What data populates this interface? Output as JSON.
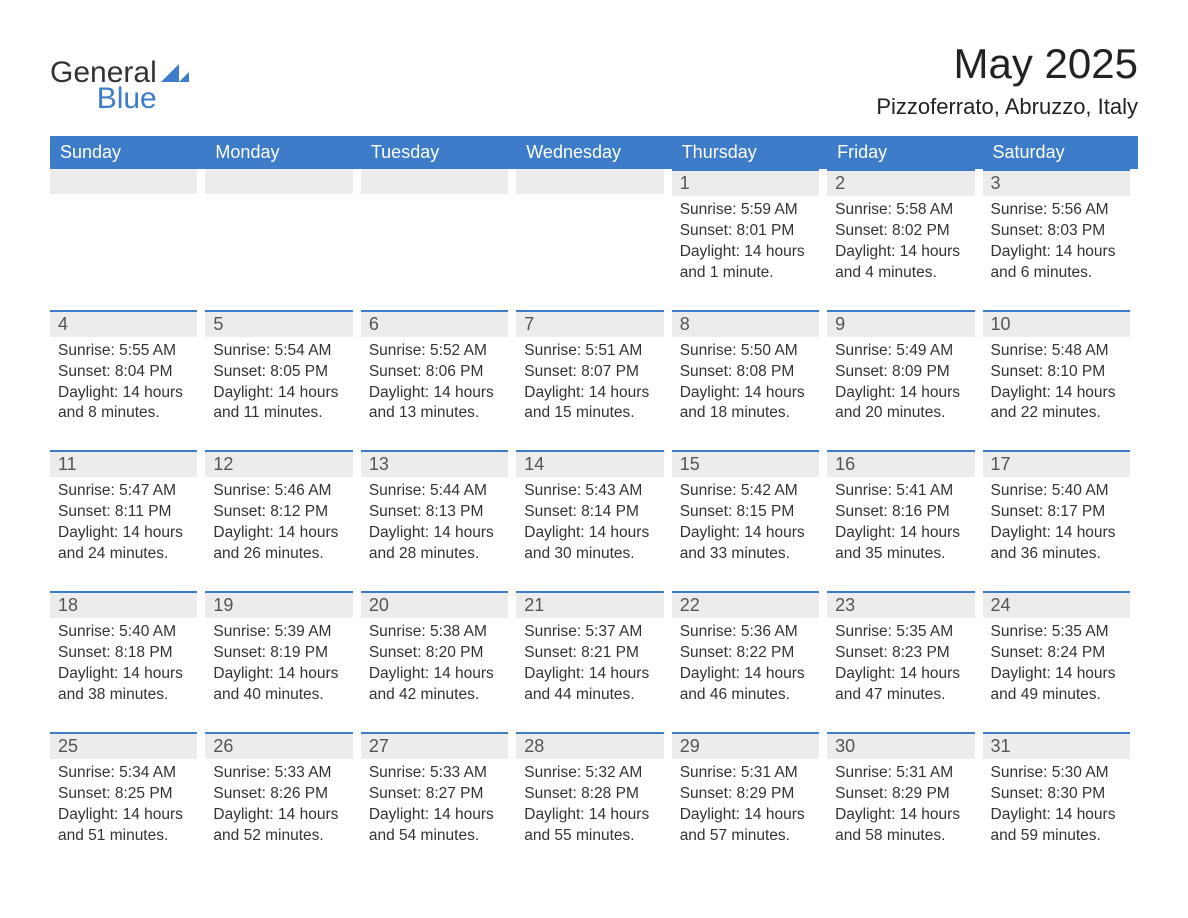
{
  "logo": {
    "word1": "General",
    "word2": "Blue"
  },
  "title": "May 2025",
  "subtitle": "Pizzoferrato, Abruzzo, Italy",
  "colors": {
    "header_bg": "#3d7cc9",
    "header_text": "#ffffff",
    "daybar_bg": "#ececec",
    "daybar_border": "#3d7cc9",
    "text": "#333333",
    "logo_blue": "#3d7cc9"
  },
  "fonts": {
    "title_size_pt": 32,
    "subtitle_size_pt": 17,
    "header_size_pt": 14,
    "body_size_pt": 12
  },
  "day_headers": [
    "Sunday",
    "Monday",
    "Tuesday",
    "Wednesday",
    "Thursday",
    "Friday",
    "Saturday"
  ],
  "weeks": [
    [
      {
        "empty": true
      },
      {
        "empty": true
      },
      {
        "empty": true
      },
      {
        "empty": true
      },
      {
        "num": "1",
        "sunrise": "Sunrise: 5:59 AM",
        "sunset": "Sunset: 8:01 PM",
        "dl1": "Daylight: 14 hours",
        "dl2": "and 1 minute."
      },
      {
        "num": "2",
        "sunrise": "Sunrise: 5:58 AM",
        "sunset": "Sunset: 8:02 PM",
        "dl1": "Daylight: 14 hours",
        "dl2": "and 4 minutes."
      },
      {
        "num": "3",
        "sunrise": "Sunrise: 5:56 AM",
        "sunset": "Sunset: 8:03 PM",
        "dl1": "Daylight: 14 hours",
        "dl2": "and 6 minutes."
      }
    ],
    [
      {
        "num": "4",
        "sunrise": "Sunrise: 5:55 AM",
        "sunset": "Sunset: 8:04 PM",
        "dl1": "Daylight: 14 hours",
        "dl2": "and 8 minutes."
      },
      {
        "num": "5",
        "sunrise": "Sunrise: 5:54 AM",
        "sunset": "Sunset: 8:05 PM",
        "dl1": "Daylight: 14 hours",
        "dl2": "and 11 minutes."
      },
      {
        "num": "6",
        "sunrise": "Sunrise: 5:52 AM",
        "sunset": "Sunset: 8:06 PM",
        "dl1": "Daylight: 14 hours",
        "dl2": "and 13 minutes."
      },
      {
        "num": "7",
        "sunrise": "Sunrise: 5:51 AM",
        "sunset": "Sunset: 8:07 PM",
        "dl1": "Daylight: 14 hours",
        "dl2": "and 15 minutes."
      },
      {
        "num": "8",
        "sunrise": "Sunrise: 5:50 AM",
        "sunset": "Sunset: 8:08 PM",
        "dl1": "Daylight: 14 hours",
        "dl2": "and 18 minutes."
      },
      {
        "num": "9",
        "sunrise": "Sunrise: 5:49 AM",
        "sunset": "Sunset: 8:09 PM",
        "dl1": "Daylight: 14 hours",
        "dl2": "and 20 minutes."
      },
      {
        "num": "10",
        "sunrise": "Sunrise: 5:48 AM",
        "sunset": "Sunset: 8:10 PM",
        "dl1": "Daylight: 14 hours",
        "dl2": "and 22 minutes."
      }
    ],
    [
      {
        "num": "11",
        "sunrise": "Sunrise: 5:47 AM",
        "sunset": "Sunset: 8:11 PM",
        "dl1": "Daylight: 14 hours",
        "dl2": "and 24 minutes."
      },
      {
        "num": "12",
        "sunrise": "Sunrise: 5:46 AM",
        "sunset": "Sunset: 8:12 PM",
        "dl1": "Daylight: 14 hours",
        "dl2": "and 26 minutes."
      },
      {
        "num": "13",
        "sunrise": "Sunrise: 5:44 AM",
        "sunset": "Sunset: 8:13 PM",
        "dl1": "Daylight: 14 hours",
        "dl2": "and 28 minutes."
      },
      {
        "num": "14",
        "sunrise": "Sunrise: 5:43 AM",
        "sunset": "Sunset: 8:14 PM",
        "dl1": "Daylight: 14 hours",
        "dl2": "and 30 minutes."
      },
      {
        "num": "15",
        "sunrise": "Sunrise: 5:42 AM",
        "sunset": "Sunset: 8:15 PM",
        "dl1": "Daylight: 14 hours",
        "dl2": "and 33 minutes."
      },
      {
        "num": "16",
        "sunrise": "Sunrise: 5:41 AM",
        "sunset": "Sunset: 8:16 PM",
        "dl1": "Daylight: 14 hours",
        "dl2": "and 35 minutes."
      },
      {
        "num": "17",
        "sunrise": "Sunrise: 5:40 AM",
        "sunset": "Sunset: 8:17 PM",
        "dl1": "Daylight: 14 hours",
        "dl2": "and 36 minutes."
      }
    ],
    [
      {
        "num": "18",
        "sunrise": "Sunrise: 5:40 AM",
        "sunset": "Sunset: 8:18 PM",
        "dl1": "Daylight: 14 hours",
        "dl2": "and 38 minutes."
      },
      {
        "num": "19",
        "sunrise": "Sunrise: 5:39 AM",
        "sunset": "Sunset: 8:19 PM",
        "dl1": "Daylight: 14 hours",
        "dl2": "and 40 minutes."
      },
      {
        "num": "20",
        "sunrise": "Sunrise: 5:38 AM",
        "sunset": "Sunset: 8:20 PM",
        "dl1": "Daylight: 14 hours",
        "dl2": "and 42 minutes."
      },
      {
        "num": "21",
        "sunrise": "Sunrise: 5:37 AM",
        "sunset": "Sunset: 8:21 PM",
        "dl1": "Daylight: 14 hours",
        "dl2": "and 44 minutes."
      },
      {
        "num": "22",
        "sunrise": "Sunrise: 5:36 AM",
        "sunset": "Sunset: 8:22 PM",
        "dl1": "Daylight: 14 hours",
        "dl2": "and 46 minutes."
      },
      {
        "num": "23",
        "sunrise": "Sunrise: 5:35 AM",
        "sunset": "Sunset: 8:23 PM",
        "dl1": "Daylight: 14 hours",
        "dl2": "and 47 minutes."
      },
      {
        "num": "24",
        "sunrise": "Sunrise: 5:35 AM",
        "sunset": "Sunset: 8:24 PM",
        "dl1": "Daylight: 14 hours",
        "dl2": "and 49 minutes."
      }
    ],
    [
      {
        "num": "25",
        "sunrise": "Sunrise: 5:34 AM",
        "sunset": "Sunset: 8:25 PM",
        "dl1": "Daylight: 14 hours",
        "dl2": "and 51 minutes."
      },
      {
        "num": "26",
        "sunrise": "Sunrise: 5:33 AM",
        "sunset": "Sunset: 8:26 PM",
        "dl1": "Daylight: 14 hours",
        "dl2": "and 52 minutes."
      },
      {
        "num": "27",
        "sunrise": "Sunrise: 5:33 AM",
        "sunset": "Sunset: 8:27 PM",
        "dl1": "Daylight: 14 hours",
        "dl2": "and 54 minutes."
      },
      {
        "num": "28",
        "sunrise": "Sunrise: 5:32 AM",
        "sunset": "Sunset: 8:28 PM",
        "dl1": "Daylight: 14 hours",
        "dl2": "and 55 minutes."
      },
      {
        "num": "29",
        "sunrise": "Sunrise: 5:31 AM",
        "sunset": "Sunset: 8:29 PM",
        "dl1": "Daylight: 14 hours",
        "dl2": "and 57 minutes."
      },
      {
        "num": "30",
        "sunrise": "Sunrise: 5:31 AM",
        "sunset": "Sunset: 8:29 PM",
        "dl1": "Daylight: 14 hours",
        "dl2": "and 58 minutes."
      },
      {
        "num": "31",
        "sunrise": "Sunrise: 5:30 AM",
        "sunset": "Sunset: 8:30 PM",
        "dl1": "Daylight: 14 hours",
        "dl2": "and 59 minutes."
      }
    ]
  ]
}
